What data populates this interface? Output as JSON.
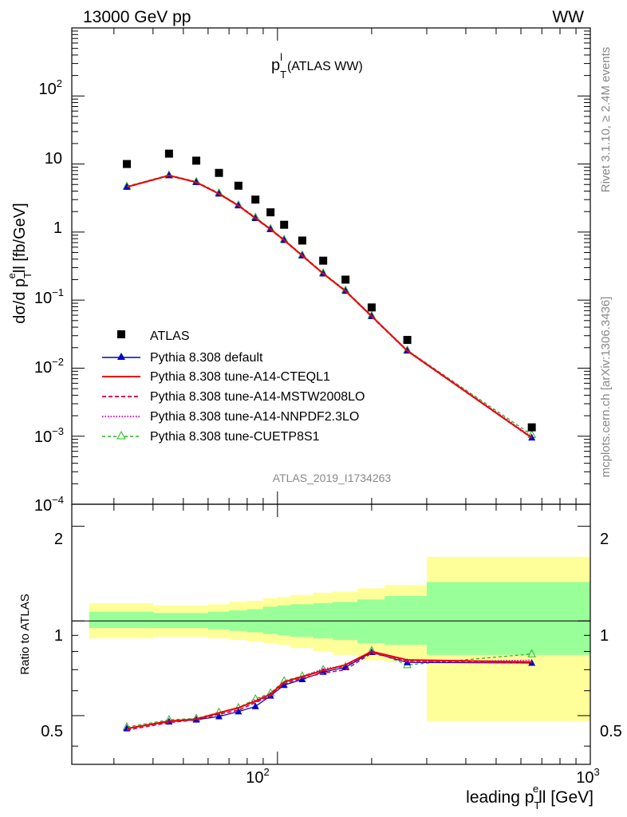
{
  "header": {
    "energy_label": "13000 GeV pp",
    "process_label": "WW"
  },
  "main_plot": {
    "title": "p",
    "title_sub": "T",
    "title_sup": "l",
    "title_suffix": "(ATLAS WW)",
    "ylabel_pre": "dσ/d p",
    "ylabel_sub": "T",
    "ylabel_sup": "e",
    "ylabel_post": "ll [fb/GeV]",
    "analysis_id": "ATLAS_2019_I1734263",
    "yticks": [
      {
        "base": "10",
        "exp": "2"
      },
      {
        "base": "10",
        "exp": ""
      },
      {
        "base": "1",
        "exp": ""
      },
      {
        "base": "10",
        "exp": "−1"
      },
      {
        "base": "10",
        "exp": "−2"
      },
      {
        "base": "10",
        "exp": "−3"
      },
      {
        "base": "10",
        "exp": "−4"
      }
    ]
  },
  "ratio_plot": {
    "ylabel": "Ratio to ATLAS",
    "yticks": [
      "2",
      "1",
      "0.5"
    ]
  },
  "xaxis": {
    "label_pre": "leading p",
    "label_sub": "T",
    "label_sup": "e",
    "label_post": "ll [GeV]",
    "ticks": [
      {
        "base": "10",
        "exp": "2"
      },
      {
        "base": "10",
        "exp": "3"
      }
    ]
  },
  "side_labels": {
    "rivet": "Rivet 3.1.10, ≥ 2.4M events",
    "mcplots": "mcplots.cern.ch [arXiv:1306.3436]"
  },
  "legend": [
    {
      "label": "ATLAS",
      "color": "#000000",
      "style": "square"
    },
    {
      "label": "Pythia 8.308 default",
      "color": "#0000cc",
      "style": "line-triangle"
    },
    {
      "label": "Pythia 8.308 tune-A14-CTEQL1",
      "color": "#ee0000",
      "style": "line"
    },
    {
      "label": "Pythia 8.308 tune-A14-MSTW2008LO",
      "color": "#dd0055",
      "style": "dashed"
    },
    {
      "label": "Pythia 8.308 tune-A14-NNPDF2.3LO",
      "color": "#dd00dd",
      "style": "dotted"
    },
    {
      "label": "Pythia 8.308 tune-CUETP8S1",
      "color": "#22bb22",
      "style": "dashed-open-triangle"
    }
  ],
  "chart_data": {
    "type": "scatter",
    "x_scale": "log",
    "y_scale": "log",
    "xlim": [
      22,
      1000
    ],
    "ylim": [
      0.0001,
      1000
    ],
    "ratio_ylim": [
      0.35,
      2.35
    ],
    "x": [
      33,
      45,
      55,
      65,
      75,
      85,
      95,
      105,
      120,
      140,
      165,
      200,
      260,
      650
    ],
    "edges": [
      25,
      40,
      50,
      60,
      70,
      80,
      90,
      100,
      110,
      130,
      150,
      180,
      220,
      300,
      1000
    ],
    "data": [
      10.0,
      14.2,
      11.2,
      7.4,
      4.8,
      3.0,
      1.95,
      1.28,
      0.75,
      0.38,
      0.2,
      0.078,
      0.026,
      0.00135
    ],
    "series": [
      {
        "name": "Pythia 8.308 default",
        "color": "#0000cc",
        "values": [
          4.6,
          6.8,
          5.4,
          3.65,
          2.45,
          1.6,
          1.1,
          0.76,
          0.45,
          0.245,
          0.136,
          0.058,
          0.018,
          0.00095
        ],
        "ratio": [
          0.455,
          0.478,
          0.485,
          0.497,
          0.515,
          0.535,
          0.578,
          0.625,
          0.652,
          0.688,
          0.712,
          0.795,
          0.738,
          0.735
        ]
      },
      {
        "name": "Pythia 8.308 tune-A14-CTEQL1",
        "color": "#ee0000",
        "values": [
          4.6,
          6.8,
          5.4,
          3.65,
          2.45,
          1.6,
          1.1,
          0.76,
          0.45,
          0.245,
          0.136,
          0.058,
          0.018,
          0.00095
        ],
        "ratio": [
          0.455,
          0.48,
          0.487,
          0.51,
          0.53,
          0.556,
          0.585,
          0.64,
          0.665,
          0.695,
          0.725,
          0.8,
          0.752,
          0.74
        ]
      },
      {
        "name": "Pythia 8.308 tune-A14-MSTW2008LO",
        "color": "#dd0055",
        "values": [
          4.55,
          6.75,
          5.35,
          3.62,
          2.42,
          1.58,
          1.09,
          0.75,
          0.445,
          0.243,
          0.135,
          0.057,
          0.0178,
          0.00094
        ],
        "ratio": [
          0.45,
          0.475,
          0.485,
          0.505,
          0.52,
          0.55,
          0.578,
          0.632,
          0.658,
          0.682,
          0.7,
          0.79,
          0.745,
          0.735
        ]
      },
      {
        "name": "Pythia 8.308 tune-A14-NNPDF2.3LO",
        "color": "#dd00dd",
        "values": [
          4.6,
          6.82,
          5.42,
          3.66,
          2.46,
          1.61,
          1.11,
          0.765,
          0.452,
          0.247,
          0.137,
          0.058,
          0.0182,
          0.00098
        ],
        "ratio": [
          0.455,
          0.48,
          0.488,
          0.508,
          0.528,
          0.56,
          0.585,
          0.64,
          0.665,
          0.705,
          0.72,
          0.8,
          0.74,
          0.75
        ]
      },
      {
        "name": "Pythia 8.308 tune-CUETP8S1",
        "color": "#22bb22",
        "values": [
          4.7,
          6.9,
          5.5,
          3.75,
          2.5,
          1.65,
          1.12,
          0.78,
          0.46,
          0.25,
          0.14,
          0.059,
          0.0183,
          0.00105
        ],
        "ratio": [
          0.46,
          0.485,
          0.49,
          0.512,
          0.53,
          0.565,
          0.59,
          0.645,
          0.668,
          0.7,
          0.715,
          0.805,
          0.725,
          0.785
        ]
      }
    ],
    "ratio_bands": {
      "yellow": [
        [
          0.88,
          1.14
        ],
        [
          0.89,
          1.12
        ],
        [
          0.89,
          1.12
        ],
        [
          0.88,
          1.13
        ],
        [
          0.87,
          1.15
        ],
        [
          0.86,
          1.16
        ],
        [
          0.85,
          1.18
        ],
        [
          0.84,
          1.19
        ],
        [
          0.82,
          1.21
        ],
        [
          0.8,
          1.23
        ],
        [
          0.78,
          1.24
        ],
        [
          0.75,
          1.27
        ],
        [
          0.74,
          1.3
        ],
        [
          0.48,
          1.6
        ]
      ],
      "green": [
        [
          0.95,
          1.07
        ],
        [
          0.95,
          1.06
        ],
        [
          0.95,
          1.06
        ],
        [
          0.94,
          1.07
        ],
        [
          0.93,
          1.08
        ],
        [
          0.92,
          1.09
        ],
        [
          0.91,
          1.11
        ],
        [
          0.9,
          1.12
        ],
        [
          0.89,
          1.13
        ],
        [
          0.88,
          1.14
        ],
        [
          0.87,
          1.15
        ],
        [
          0.85,
          1.17
        ],
        [
          0.84,
          1.2
        ],
        [
          0.78,
          1.33
        ]
      ]
    }
  }
}
